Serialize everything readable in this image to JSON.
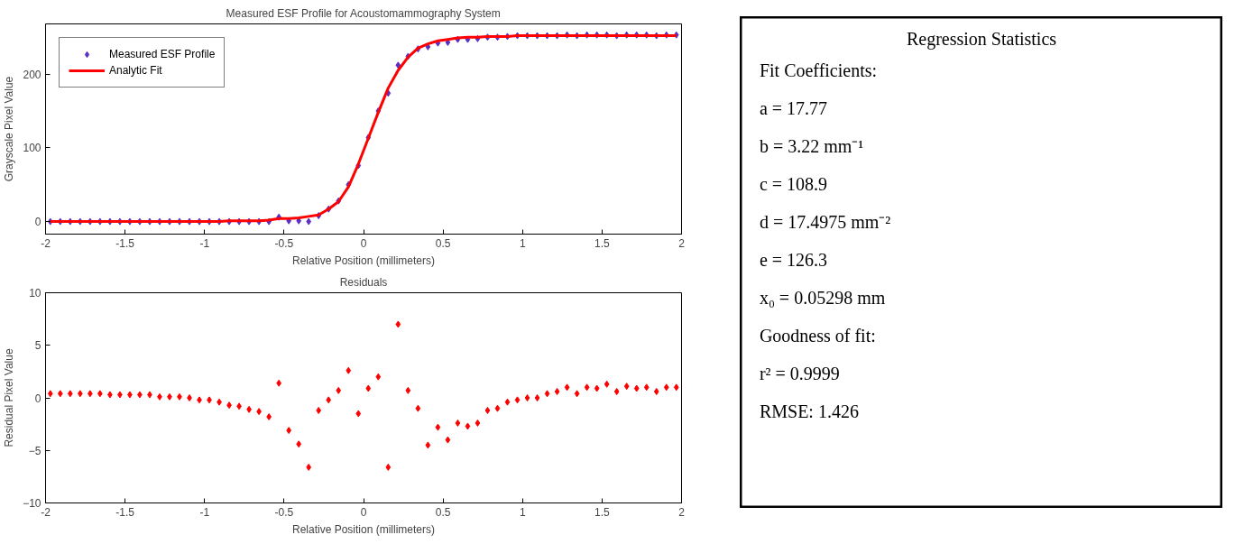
{
  "chart_data": [
    {
      "type": "scatter",
      "title": "Measured ESF Profile for Acoustomammography System",
      "xlabel": "Relative Position (millimeters)",
      "ylabel": "Grayscale Pixel Value",
      "xlim": [
        -2,
        2
      ],
      "xticks": [
        -2,
        -1.5,
        -1,
        -0.5,
        0,
        0.5,
        1,
        1.5,
        2
      ],
      "ylim": [
        -17,
        268
      ],
      "yticks": [
        0,
        100,
        200
      ],
      "grid": false,
      "legend": "top left",
      "x": [
        -1.97,
        -1.9075,
        -1.845,
        -1.7825,
        -1.72,
        -1.6575,
        -1.595,
        -1.5325,
        -1.47,
        -1.4075,
        -1.345,
        -1.2825,
        -1.22,
        -1.1575,
        -1.095,
        -1.0325,
        -0.97,
        -0.9075,
        -0.845,
        -0.7825,
        -0.72,
        -0.6575,
        -0.595,
        -0.5325,
        -0.47,
        -0.4075,
        -0.345,
        -0.2825,
        -0.22,
        -0.1575,
        -0.095,
        -0.0325,
        0.03,
        0.0925,
        0.155,
        0.2175,
        0.28,
        0.3425,
        0.405,
        0.4675,
        0.53,
        0.5925,
        0.655,
        0.7175,
        0.78,
        0.8425,
        0.905,
        0.9675,
        1.03,
        1.0925,
        1.155,
        1.2175,
        1.28,
        1.3425,
        1.405,
        1.4675,
        1.53,
        1.5925,
        1.655,
        1.7175,
        1.78,
        1.8425,
        1.905,
        1.9675
      ],
      "series": [
        {
          "name": "Measured ESF Profile",
          "type": "scatter",
          "marker": "diamond",
          "color": "#5a2fc8",
          "values": [
            0,
            0,
            0,
            0,
            0,
            0,
            0,
            0,
            0,
            0,
            0,
            0,
            0,
            0,
            0,
            0,
            0,
            0,
            0,
            0,
            0,
            0,
            0,
            6,
            1,
            1,
            0,
            8,
            17,
            28,
            50,
            76,
            114,
            150,
            174,
            212,
            224,
            234,
            237,
            242,
            243,
            247,
            247,
            248,
            250,
            250,
            251,
            252,
            252,
            252,
            252,
            252,
            253,
            252,
            253,
            253,
            253,
            252,
            253,
            253,
            253,
            252,
            253,
            253
          ]
        },
        {
          "name": "Analytic Fit",
          "type": "line",
          "marker": "none",
          "color": "#ff0000",
          "values": [
            0,
            0,
            0,
            0,
            0,
            0,
            0,
            0,
            0,
            0,
            0,
            0,
            0,
            0,
            0,
            0,
            0,
            0,
            1,
            1,
            1,
            1,
            2,
            4,
            4,
            5,
            7,
            9,
            17,
            27,
            47,
            78,
            113,
            148,
            181,
            205,
            223,
            235,
            241,
            245,
            247,
            249,
            250,
            250,
            251,
            251,
            251,
            252,
            252,
            252,
            252,
            252,
            252,
            252,
            252,
            252,
            252,
            252,
            252,
            252,
            252,
            252,
            252,
            252
          ]
        }
      ]
    },
    {
      "type": "scatter",
      "title": "Residuals",
      "xlabel": "Relative Position (millimeters)",
      "ylabel": "Residual Pixel Value",
      "xlim": [
        -2,
        2
      ],
      "xticks": [
        -2,
        -1.5,
        -1,
        -0.5,
        0,
        0.5,
        1,
        1.5,
        2
      ],
      "ylim": [
        -10,
        10
      ],
      "yticks": [
        -10,
        -5,
        0,
        5,
        10
      ],
      "grid": false,
      "marker": "diamond",
      "x": [
        -1.97,
        -1.9075,
        -1.845,
        -1.7825,
        -1.72,
        -1.6575,
        -1.595,
        -1.5325,
        -1.47,
        -1.4075,
        -1.345,
        -1.2825,
        -1.22,
        -1.1575,
        -1.095,
        -1.0325,
        -0.97,
        -0.9075,
        -0.845,
        -0.7825,
        -0.72,
        -0.6575,
        -0.595,
        -0.5325,
        -0.47,
        -0.4075,
        -0.345,
        -0.2825,
        -0.22,
        -0.1575,
        -0.095,
        -0.0325,
        0.03,
        0.0925,
        0.155,
        0.2175,
        0.28,
        0.3425,
        0.405,
        0.4675,
        0.53,
        0.5925,
        0.655,
        0.7175,
        0.78,
        0.8425,
        0.905,
        0.9675,
        1.03,
        1.0925,
        1.155,
        1.2175,
        1.28,
        1.3425,
        1.405,
        1.4675,
        1.53,
        1.5925,
        1.655,
        1.7175,
        1.78,
        1.8425,
        1.905,
        1.9675
      ],
      "series": [
        {
          "color": "#ff0000",
          "values": [
            0.4,
            0.4,
            0.4,
            0.4,
            0.4,
            0.4,
            0.3,
            0.3,
            0.3,
            0.3,
            0.3,
            0.1,
            0.1,
            0.1,
            0,
            -0.2,
            -0.2,
            -0.4,
            -0.7,
            -0.8,
            -1.1,
            -1.3,
            -1.8,
            1.4,
            -3.1,
            -4.4,
            -6.6,
            -1.2,
            -0.2,
            0.7,
            2.6,
            -1.5,
            0.9,
            2.0,
            -6.6,
            7.0,
            0.7,
            -1.0,
            -4.5,
            -2.8,
            -4.0,
            -2.4,
            -2.7,
            -2.4,
            -1.2,
            -1.0,
            -0.4,
            -0.2,
            0,
            0,
            0.4,
            0.6,
            1.0,
            0.4,
            1.0,
            0.9,
            1.3,
            0.6,
            1.1,
            0.9,
            1.0,
            0.6,
            1.0,
            1.0
          ]
        }
      ]
    },
    {
      "type": "other",
      "title": "Regression Statistics",
      "annotations": [
        "Fit Coefficients:",
        "a = 17.77",
        "b =  3.22 mm⁻¹",
        "c = 108.9",
        "d = 17.4975 mm⁻²",
        "e = 126.3",
        "x₀ = 0.05298 mm",
        "Goodness of fit:",
        "r² = 0.9999",
        "RMSE: 1.426"
      ]
    }
  ]
}
